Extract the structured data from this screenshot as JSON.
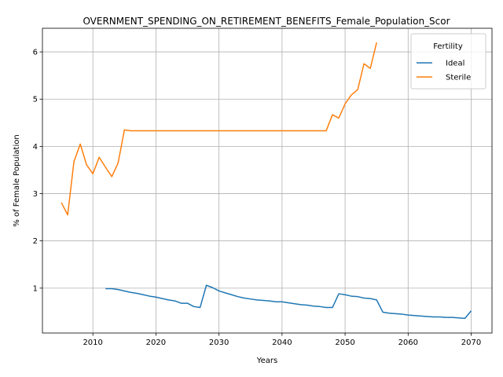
{
  "chart_data": {
    "type": "line",
    "title": "OVERNMENT_SPENDING_ON_RETIREMENT_BENEFITS_Female_Population_Scor",
    "xlabel": "Years",
    "ylabel": "% of Female Population",
    "xlim": [
      2002,
      2073.3
    ],
    "ylim": [
      0.05,
      6.5
    ],
    "xticks": [
      2010,
      2020,
      2030,
      2040,
      2050,
      2060,
      2070
    ],
    "yticks": [
      1,
      2,
      3,
      4,
      5,
      6
    ],
    "grid": true,
    "legend": {
      "title": "Fertility",
      "placement": "top-right"
    },
    "series": [
      {
        "name": "Ideal",
        "color": "#1f77b4",
        "points": [
          [
            2012,
            0.99
          ],
          [
            2013,
            0.99
          ],
          [
            2014,
            0.97
          ],
          [
            2015,
            0.94
          ],
          [
            2016,
            0.91
          ],
          [
            2017,
            0.89
          ],
          [
            2018,
            0.86
          ],
          [
            2019,
            0.83
          ],
          [
            2020,
            0.81
          ],
          [
            2021,
            0.78
          ],
          [
            2022,
            0.75
          ],
          [
            2023,
            0.73
          ],
          [
            2024,
            0.68
          ],
          [
            2025,
            0.68
          ],
          [
            2026,
            0.61
          ],
          [
            2027,
            0.59
          ],
          [
            2028,
            1.06
          ],
          [
            2029,
            1.01
          ],
          [
            2030,
            0.94
          ],
          [
            2031,
            0.9
          ],
          [
            2032,
            0.86
          ],
          [
            2033,
            0.82
          ],
          [
            2034,
            0.79
          ],
          [
            2035,
            0.77
          ],
          [
            2036,
            0.75
          ],
          [
            2037,
            0.74
          ],
          [
            2038,
            0.73
          ],
          [
            2039,
            0.71
          ],
          [
            2040,
            0.71
          ],
          [
            2041,
            0.69
          ],
          [
            2042,
            0.67
          ],
          [
            2043,
            0.65
          ],
          [
            2044,
            0.64
          ],
          [
            2045,
            0.62
          ],
          [
            2046,
            0.61
          ],
          [
            2047,
            0.59
          ],
          [
            2048,
            0.59
          ],
          [
            2049,
            0.88
          ],
          [
            2050,
            0.86
          ],
          [
            2051,
            0.83
          ],
          [
            2052,
            0.82
          ],
          [
            2053,
            0.79
          ],
          [
            2054,
            0.78
          ],
          [
            2055,
            0.75
          ],
          [
            2056,
            0.49
          ],
          [
            2057,
            0.47
          ],
          [
            2058,
            0.46
          ],
          [
            2059,
            0.45
          ],
          [
            2060,
            0.43
          ],
          [
            2061,
            0.42
          ],
          [
            2062,
            0.41
          ],
          [
            2063,
            0.4
          ],
          [
            2064,
            0.39
          ],
          [
            2065,
            0.39
          ],
          [
            2066,
            0.38
          ],
          [
            2067,
            0.38
          ],
          [
            2068,
            0.37
          ],
          [
            2069,
            0.36
          ],
          [
            2070,
            0.52
          ]
        ]
      },
      {
        "name": "Sterile",
        "color": "#ff7f0e",
        "points": [
          [
            2005,
            2.81
          ],
          [
            2006,
            2.55
          ],
          [
            2007,
            3.68
          ],
          [
            2008,
            4.05
          ],
          [
            2009,
            3.61
          ],
          [
            2010,
            3.42
          ],
          [
            2011,
            3.77
          ],
          [
            2012,
            3.56
          ],
          [
            2013,
            3.36
          ],
          [
            2014,
            3.65
          ],
          [
            2015,
            4.35
          ],
          [
            2016,
            4.33
          ],
          [
            2017,
            4.33
          ],
          [
            2018,
            4.33
          ],
          [
            2019,
            4.33
          ],
          [
            2020,
            4.33
          ],
          [
            2025,
            4.33
          ],
          [
            2030,
            4.33
          ],
          [
            2035,
            4.33
          ],
          [
            2040,
            4.33
          ],
          [
            2045,
            4.33
          ],
          [
            2047,
            4.33
          ],
          [
            2048,
            4.67
          ],
          [
            2049,
            4.6
          ],
          [
            2050,
            4.9
          ],
          [
            2051,
            5.09
          ],
          [
            2052,
            5.2
          ],
          [
            2053,
            5.75
          ],
          [
            2054,
            5.65
          ],
          [
            2055,
            6.2
          ]
        ]
      }
    ]
  }
}
